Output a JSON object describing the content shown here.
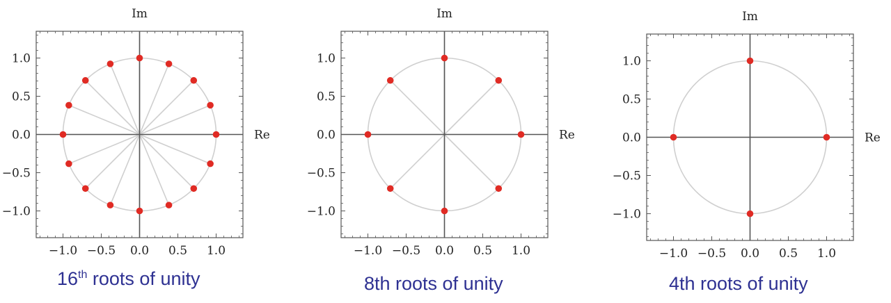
{
  "chart_data": [
    {
      "type": "scatter",
      "n": 16,
      "title": "16th roots of unity",
      "caption_number": "16",
      "caption_superscript": "th",
      "caption_rest": " roots of unity",
      "xlabel": "Re",
      "ylabel": "Im",
      "xlim": [
        -1.35,
        1.35
      ],
      "ylim": [
        -1.35,
        1.35
      ],
      "xticks": [
        -1.0,
        -0.5,
        0.0,
        0.5,
        1.0
      ],
      "yticks": [
        -1.0,
        -0.5,
        0.0,
        0.5,
        1.0
      ],
      "xtick_labels": [
        "−1.0",
        "−0.5",
        "0.0",
        "0.5",
        "1.0"
      ],
      "ytick_labels": [
        "−1.0",
        "−0.5",
        "0.0",
        "0.5",
        "1.0"
      ],
      "unit_circle": true,
      "spokes": true
    },
    {
      "type": "scatter",
      "n": 8,
      "title": "8th roots of unity",
      "xlabel": "Re",
      "ylabel": "Im",
      "xlim": [
        -1.35,
        1.35
      ],
      "ylim": [
        -1.35,
        1.35
      ],
      "xticks": [
        -1.0,
        -0.5,
        0.0,
        0.5,
        1.0
      ],
      "yticks": [
        -1.0,
        -0.5,
        0.0,
        0.5,
        1.0
      ],
      "xtick_labels": [
        "−1.0",
        "−0.5",
        "0.0",
        "0.5",
        "1.0"
      ],
      "ytick_labels": [
        "−1.0",
        "−0.5",
        "0.0",
        "0.5",
        "1.0"
      ],
      "unit_circle": true,
      "spokes": true
    },
    {
      "type": "scatter",
      "n": 4,
      "title": "4th roots of unity",
      "xlabel": "Re",
      "ylabel": "Im",
      "xlim": [
        -1.35,
        1.35
      ],
      "ylim": [
        -1.35,
        1.35
      ],
      "xticks": [
        -1.0,
        -0.5,
        0.0,
        0.5,
        1.0
      ],
      "yticks": [
        -1.0,
        -0.5,
        0.0,
        0.5,
        1.0
      ],
      "xtick_labels": [
        "−1.0",
        "−0.5",
        "0.0",
        "0.5",
        "1.0"
      ],
      "ytick_labels": [
        "−1.0",
        "−0.5",
        "0.0",
        "0.5",
        "1.0"
      ],
      "unit_circle": true,
      "spokes": true
    }
  ],
  "colors": {
    "point": "#e02b24",
    "circle": "#cfcfcf",
    "spoke": "#cfcfcf",
    "axis": "#555555",
    "frame": "#555555",
    "caption": "#2e3192"
  }
}
